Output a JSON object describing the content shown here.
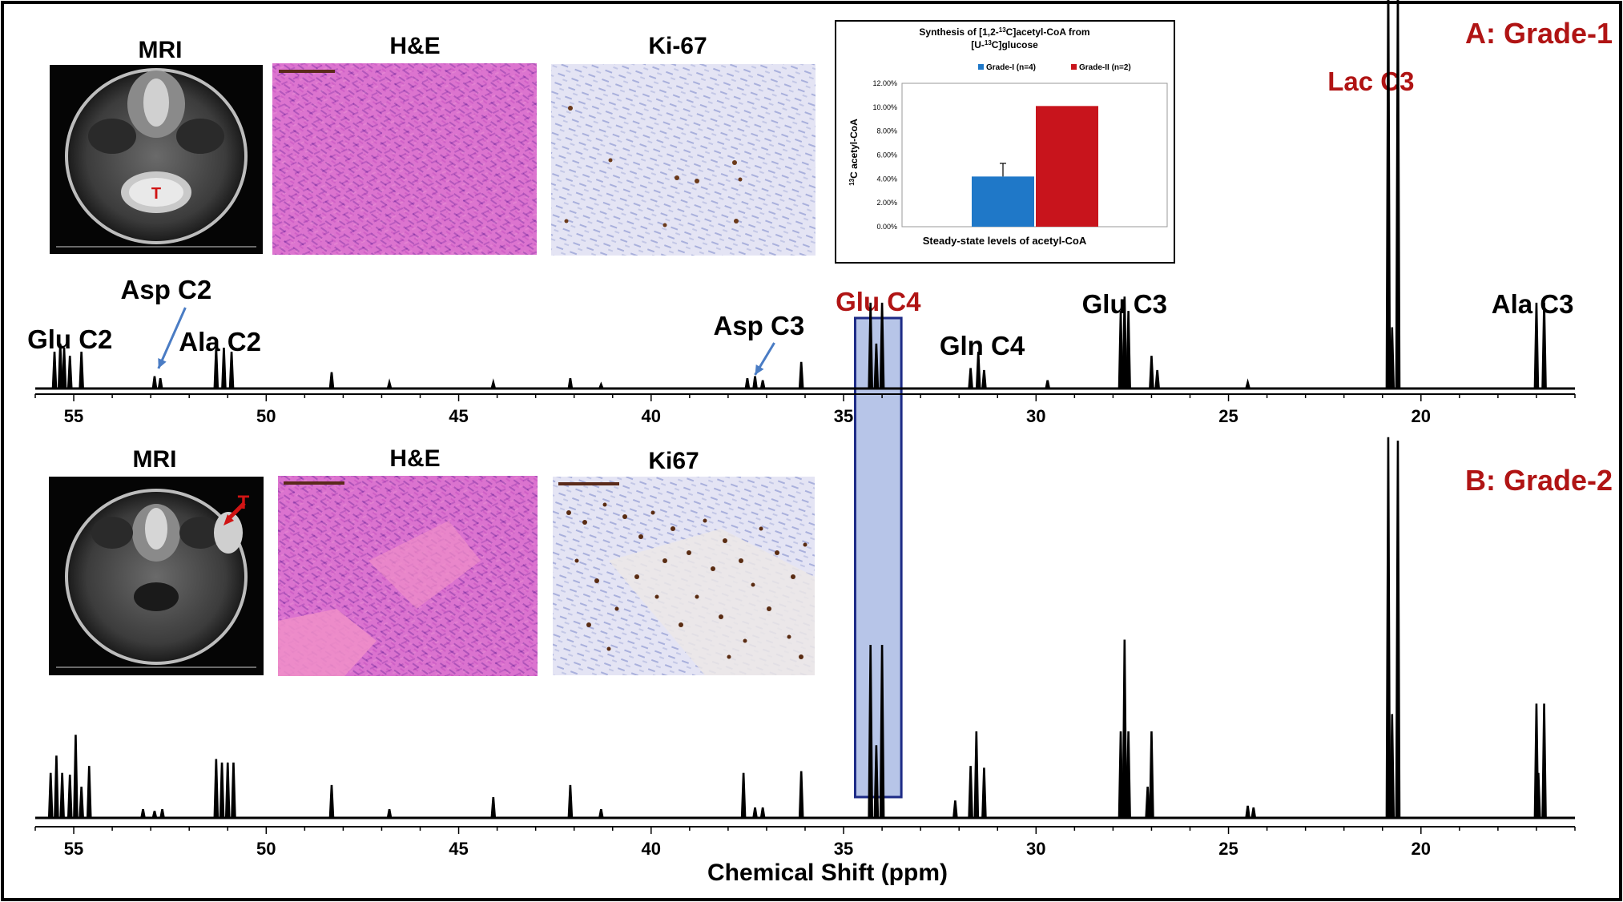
{
  "panels": {
    "A": {
      "title": "A: Grade-1",
      "image_titles": [
        "MRI",
        "H&E",
        "Ki-67"
      ],
      "mri_marker": "T"
    },
    "B": {
      "title": "B: Grade-2",
      "image_titles": [
        "MRI",
        "H&E",
        "Ki67"
      ],
      "mri_marker": "T"
    }
  },
  "colors": {
    "accent_red": "#b01414",
    "arrow_blue": "#4a7cc4",
    "highlight_fill": "#7b95d6",
    "highlight_stroke": "#1d2b86",
    "he_pink": "#d768c9",
    "ki_bg": "#e6e6f5",
    "grade1_bar": "#1f78c8",
    "grade2_bar": "#c8141c"
  },
  "chart_data": [
    {
      "type": "bar",
      "title_parts": [
        "Synthesis of [1,2-",
        "13",
        "C]acetyl-CoA from",
        "[U-",
        "13",
        "C]glucose"
      ],
      "ylabel_parts": [
        "13",
        "C acetyl-CoA"
      ],
      "xlabel": "Steady-state levels of acetyl-CoA",
      "series": [
        {
          "name": "Grade-I (n=4)",
          "values": [
            0.042
          ],
          "error": [
            0.011
          ]
        },
        {
          "name": "Grade-II (n=2)",
          "values": [
            0.101
          ]
        }
      ],
      "ylim": [
        0,
        0.12
      ],
      "yticks": [
        "0.00%",
        "2.00%",
        "4.00%",
        "6.00%",
        "8.00%",
        "10.00%",
        "12.00%"
      ],
      "legend": "top"
    },
    {
      "type": "line",
      "panel": "A",
      "xlabel": "Chemical Shift (ppm)",
      "xlim": [
        56,
        16
      ],
      "xticks": [
        55,
        50,
        45,
        40,
        35,
        30,
        25,
        20
      ],
      "highlight_range": [
        34.7,
        33.5
      ],
      "peaks": [
        {
          "ppm": 55.5,
          "h": 0.18
        },
        {
          "ppm": 55.35,
          "h": 0.22
        },
        {
          "ppm": 55.25,
          "h": 0.2
        },
        {
          "ppm": 55.1,
          "h": 0.16
        },
        {
          "ppm": 54.8,
          "h": 0.18
        },
        {
          "ppm": 52.9,
          "h": 0.06
        },
        {
          "ppm": 52.75,
          "h": 0.05
        },
        {
          "ppm": 51.3,
          "h": 0.2
        },
        {
          "ppm": 51.1,
          "h": 0.2
        },
        {
          "ppm": 50.9,
          "h": 0.18
        },
        {
          "ppm": 48.3,
          "h": 0.08
        },
        {
          "ppm": 46.8,
          "h": 0.03
        },
        {
          "ppm": 44.1,
          "h": 0.03
        },
        {
          "ppm": 42.1,
          "h": 0.05
        },
        {
          "ppm": 41.3,
          "h": 0.02
        },
        {
          "ppm": 37.5,
          "h": 0.05
        },
        {
          "ppm": 37.3,
          "h": 0.06
        },
        {
          "ppm": 37.1,
          "h": 0.04
        },
        {
          "ppm": 36.1,
          "h": 0.13
        },
        {
          "ppm": 34.3,
          "h": 0.42
        },
        {
          "ppm": 34.15,
          "h": 0.22
        },
        {
          "ppm": 34.0,
          "h": 0.42
        },
        {
          "ppm": 31.7,
          "h": 0.1
        },
        {
          "ppm": 31.5,
          "h": 0.18
        },
        {
          "ppm": 31.35,
          "h": 0.09
        },
        {
          "ppm": 29.7,
          "h": 0.04
        },
        {
          "ppm": 27.8,
          "h": 0.38
        },
        {
          "ppm": 27.7,
          "h": 0.45
        },
        {
          "ppm": 27.6,
          "h": 0.38
        },
        {
          "ppm": 27.0,
          "h": 0.16
        },
        {
          "ppm": 26.85,
          "h": 0.09
        },
        {
          "ppm": 24.5,
          "h": 0.03
        },
        {
          "ppm": 20.85,
          "h": 2.05
        },
        {
          "ppm": 20.75,
          "h": 0.3
        },
        {
          "ppm": 20.6,
          "h": 2.0
        },
        {
          "ppm": 17.0,
          "h": 0.42
        },
        {
          "ppm": 16.8,
          "h": 0.42
        }
      ],
      "labels": [
        {
          "text": "Glu C2",
          "ppm": 55.1,
          "tone": "black"
        },
        {
          "text": "Asp C2",
          "ppm": 52.6,
          "tone": "black",
          "arrow": true
        },
        {
          "text": "Ala C2",
          "ppm": 51.2,
          "tone": "black"
        },
        {
          "text": "Asp C3",
          "ppm": 37.2,
          "tone": "black",
          "arrow": true
        },
        {
          "text": "Glu C4",
          "ppm": 34.1,
          "tone": "red"
        },
        {
          "text": "Gln C4",
          "ppm": 31.4,
          "tone": "black"
        },
        {
          "text": "Glu C3",
          "ppm": 27.7,
          "tone": "black"
        },
        {
          "text": "Lac C3",
          "ppm": 21.3,
          "tone": "red"
        },
        {
          "text": "Ala C3",
          "ppm": 17.1,
          "tone": "black"
        }
      ]
    },
    {
      "type": "line",
      "panel": "B",
      "xlabel": "Chemical Shift (ppm)",
      "xlim": [
        56,
        16
      ],
      "xticks": [
        55,
        50,
        45,
        40,
        35,
        30,
        25,
        20
      ],
      "highlight_range": [
        34.7,
        33.5
      ],
      "peaks": [
        {
          "ppm": 55.6,
          "h": 0.26
        },
        {
          "ppm": 55.45,
          "h": 0.36
        },
        {
          "ppm": 55.3,
          "h": 0.26
        },
        {
          "ppm": 55.1,
          "h": 0.25
        },
        {
          "ppm": 54.95,
          "h": 0.48
        },
        {
          "ppm": 54.8,
          "h": 0.18
        },
        {
          "ppm": 54.6,
          "h": 0.3
        },
        {
          "ppm": 53.2,
          "h": 0.05
        },
        {
          "ppm": 52.9,
          "h": 0.04
        },
        {
          "ppm": 52.7,
          "h": 0.05
        },
        {
          "ppm": 51.3,
          "h": 0.34
        },
        {
          "ppm": 51.15,
          "h": 0.32
        },
        {
          "ppm": 51.0,
          "h": 0.32
        },
        {
          "ppm": 50.85,
          "h": 0.32
        },
        {
          "ppm": 48.3,
          "h": 0.19
        },
        {
          "ppm": 46.8,
          "h": 0.05
        },
        {
          "ppm": 44.1,
          "h": 0.12
        },
        {
          "ppm": 42.1,
          "h": 0.19
        },
        {
          "ppm": 41.3,
          "h": 0.05
        },
        {
          "ppm": 37.6,
          "h": 0.26
        },
        {
          "ppm": 37.3,
          "h": 0.06
        },
        {
          "ppm": 37.1,
          "h": 0.06
        },
        {
          "ppm": 36.1,
          "h": 0.27
        },
        {
          "ppm": 34.3,
          "h": 1.0
        },
        {
          "ppm": 34.15,
          "h": 0.42
        },
        {
          "ppm": 34.0,
          "h": 1.0
        },
        {
          "ppm": 32.1,
          "h": 0.1
        },
        {
          "ppm": 31.7,
          "h": 0.3
        },
        {
          "ppm": 31.55,
          "h": 0.5
        },
        {
          "ppm": 31.35,
          "h": 0.29
        },
        {
          "ppm": 27.8,
          "h": 0.5
        },
        {
          "ppm": 27.7,
          "h": 1.03
        },
        {
          "ppm": 27.6,
          "h": 0.5
        },
        {
          "ppm": 27.1,
          "h": 0.18
        },
        {
          "ppm": 27.0,
          "h": 0.5
        },
        {
          "ppm": 24.5,
          "h": 0.07
        },
        {
          "ppm": 24.35,
          "h": 0.06
        },
        {
          "ppm": 20.85,
          "h": 2.2
        },
        {
          "ppm": 20.75,
          "h": 0.6
        },
        {
          "ppm": 20.6,
          "h": 2.18
        },
        {
          "ppm": 17.0,
          "h": 0.66
        },
        {
          "ppm": 16.95,
          "h": 0.26
        },
        {
          "ppm": 16.8,
          "h": 0.66
        }
      ]
    }
  ]
}
